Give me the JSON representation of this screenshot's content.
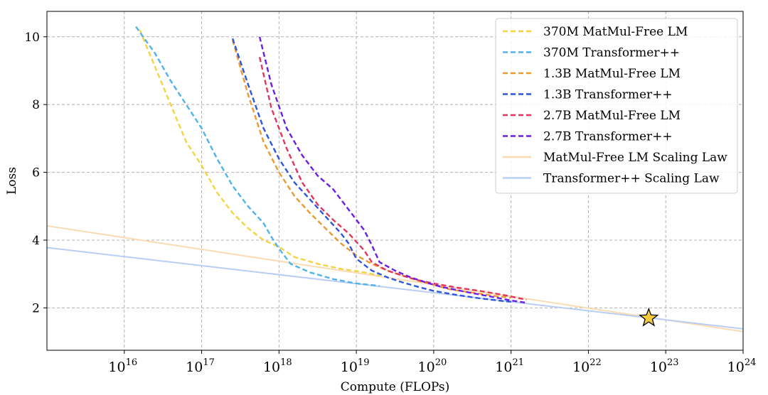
{
  "chart_data": {
    "type": "line",
    "xlabel": "Compute (FLOPs)",
    "ylabel": "Loss",
    "xscale": "log",
    "xlim_exponents": [
      15,
      24
    ],
    "ylim": [
      0.75,
      10.75
    ],
    "xticks": [
      {
        "base": "10",
        "exp": "16",
        "value": 16
      },
      {
        "base": "10",
        "exp": "17",
        "value": 17
      },
      {
        "base": "10",
        "exp": "18",
        "value": 18
      },
      {
        "base": "10",
        "exp": "19",
        "value": 19
      },
      {
        "base": "10",
        "exp": "20",
        "value": 20
      },
      {
        "base": "10",
        "exp": "21",
        "value": 21
      },
      {
        "base": "10",
        "exp": "22",
        "value": 22
      },
      {
        "base": "10",
        "exp": "23",
        "value": 23
      },
      {
        "base": "10",
        "exp": "24",
        "value": 24
      }
    ],
    "yticks": [
      {
        "label": "2",
        "value": 2
      },
      {
        "label": "4",
        "value": 4
      },
      {
        "label": "6",
        "value": 6
      },
      {
        "label": "8",
        "value": 8
      },
      {
        "label": "10",
        "value": 10
      }
    ],
    "grid": true,
    "legend_position": "top-right",
    "series": [
      {
        "name": "370M MatMul-Free LM",
        "color": "#f5d442",
        "style": "dashed",
        "points": [
          [
            16.2,
            10.2
          ],
          [
            16.4,
            9.1
          ],
          [
            16.6,
            8.0
          ],
          [
            16.8,
            6.9
          ],
          [
            17.0,
            6.2
          ],
          [
            17.2,
            5.4
          ],
          [
            17.4,
            4.8
          ],
          [
            17.6,
            4.35
          ],
          [
            17.8,
            4.0
          ],
          [
            18.0,
            3.8
          ],
          [
            18.2,
            3.5
          ],
          [
            18.5,
            3.3
          ],
          [
            18.8,
            3.15
          ],
          [
            19.1,
            3.05
          ],
          [
            19.3,
            2.95
          ]
        ]
      },
      {
        "name": "370M Transformer++",
        "color": "#4fb3ec",
        "style": "dashed",
        "points": [
          [
            16.15,
            10.3
          ],
          [
            16.4,
            9.5
          ],
          [
            16.6,
            8.7
          ],
          [
            16.8,
            8.0
          ],
          [
            17.0,
            7.3
          ],
          [
            17.2,
            6.4
          ],
          [
            17.4,
            5.6
          ],
          [
            17.6,
            5.0
          ],
          [
            17.8,
            4.5
          ],
          [
            17.9,
            4.1
          ],
          [
            18.0,
            3.75
          ],
          [
            18.15,
            3.3
          ],
          [
            18.4,
            3.05
          ],
          [
            18.7,
            2.85
          ],
          [
            19.0,
            2.72
          ],
          [
            19.3,
            2.65
          ]
        ]
      },
      {
        "name": "1.3B MatMul-Free LM",
        "color": "#ec9a30",
        "style": "dashed",
        "points": [
          [
            17.4,
            9.9
          ],
          [
            17.6,
            8.3
          ],
          [
            17.8,
            6.9
          ],
          [
            18.0,
            6.0
          ],
          [
            18.2,
            5.3
          ],
          [
            18.4,
            4.8
          ],
          [
            18.6,
            4.35
          ],
          [
            18.8,
            3.9
          ],
          [
            19.0,
            3.55
          ],
          [
            19.2,
            3.3
          ],
          [
            19.4,
            3.1
          ],
          [
            19.6,
            2.95
          ],
          [
            19.8,
            2.8
          ],
          [
            20.0,
            2.68
          ],
          [
            20.2,
            2.55
          ],
          [
            20.5,
            2.45
          ],
          [
            20.8,
            2.35
          ],
          [
            21.0,
            2.3
          ]
        ]
      },
      {
        "name": "1.3B Transformer++",
        "color": "#2c55e0",
        "style": "dashed",
        "points": [
          [
            17.4,
            9.95
          ],
          [
            17.6,
            8.6
          ],
          [
            17.8,
            7.3
          ],
          [
            18.0,
            6.4
          ],
          [
            18.2,
            5.7
          ],
          [
            18.4,
            5.2
          ],
          [
            18.6,
            4.7
          ],
          [
            18.8,
            4.2
          ],
          [
            18.9,
            3.9
          ],
          [
            19.0,
            3.45
          ],
          [
            19.2,
            3.1
          ],
          [
            19.4,
            2.9
          ],
          [
            19.6,
            2.75
          ],
          [
            19.8,
            2.62
          ],
          [
            20.0,
            2.5
          ],
          [
            20.3,
            2.38
          ],
          [
            20.6,
            2.28
          ],
          [
            20.9,
            2.2
          ],
          [
            21.0,
            2.18
          ]
        ]
      },
      {
        "name": "2.7B MatMul-Free LM",
        "color": "#e2365f",
        "style": "dashed",
        "points": [
          [
            17.75,
            9.4
          ],
          [
            17.9,
            7.9
          ],
          [
            18.1,
            6.7
          ],
          [
            18.3,
            5.7
          ],
          [
            18.5,
            5.05
          ],
          [
            18.7,
            4.6
          ],
          [
            18.9,
            4.2
          ],
          [
            19.1,
            3.7
          ],
          [
            19.2,
            3.35
          ],
          [
            19.4,
            3.1
          ],
          [
            19.6,
            2.95
          ],
          [
            19.8,
            2.82
          ],
          [
            20.0,
            2.72
          ],
          [
            20.3,
            2.6
          ],
          [
            20.6,
            2.5
          ],
          [
            20.9,
            2.38
          ],
          [
            21.2,
            2.24
          ]
        ]
      },
      {
        "name": "2.7B Transformer++",
        "color": "#6a1ee6",
        "style": "dashed",
        "points": [
          [
            17.75,
            10.0
          ],
          [
            17.9,
            8.6
          ],
          [
            18.1,
            7.3
          ],
          [
            18.3,
            6.5
          ],
          [
            18.5,
            5.9
          ],
          [
            18.7,
            5.5
          ],
          [
            18.9,
            4.9
          ],
          [
            19.1,
            4.3
          ],
          [
            19.2,
            3.85
          ],
          [
            19.3,
            3.35
          ],
          [
            19.5,
            3.1
          ],
          [
            19.7,
            2.9
          ],
          [
            19.9,
            2.75
          ],
          [
            20.1,
            2.62
          ],
          [
            20.4,
            2.48
          ],
          [
            20.7,
            2.35
          ],
          [
            21.0,
            2.22
          ],
          [
            21.2,
            2.15
          ]
        ]
      },
      {
        "name": "MatMul-Free LM Scaling Law",
        "color": "#f9dcb4",
        "style": "solid",
        "points": [
          [
            15.0,
            4.42
          ],
          [
            24.0,
            1.3
          ]
        ]
      },
      {
        "name": "Transformer++ Scaling Law",
        "color": "#b9cdf5",
        "style": "solid",
        "points": [
          [
            15.0,
            3.78
          ],
          [
            24.0,
            1.38
          ]
        ]
      }
    ],
    "marker": {
      "shape": "star",
      "x": 22.78,
      "y": 1.7,
      "color": "#f7cc3a"
    }
  }
}
